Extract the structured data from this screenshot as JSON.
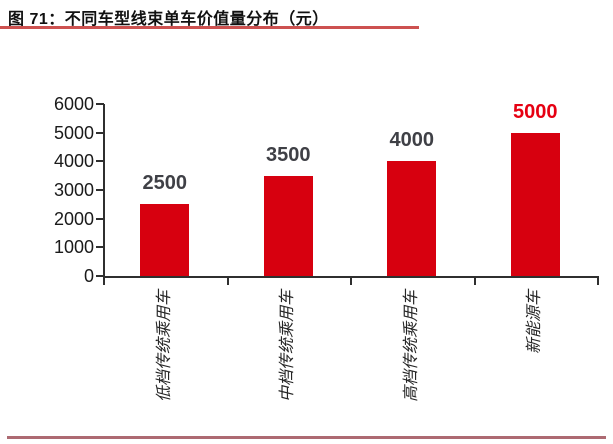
{
  "figure": {
    "title": "图 71：不同车型线束单车价值量分布（元）",
    "title_underline_color": "#cd5150",
    "footer_rule_color": "#ad6a72",
    "background_color": "#ffffff"
  },
  "chart_data": {
    "type": "bar",
    "title": "不同车型线束单车价值量分布（元）",
    "categories": [
      "低档传统乘用车",
      "中档传统乘用车",
      "高档传统乘用车",
      "新能源车"
    ],
    "values": [
      2500,
      3500,
      4000,
      5000
    ],
    "value_labels": [
      "2500",
      "3500",
      "4000",
      "5000"
    ],
    "value_label_colors": [
      "#3f4046",
      "#3f4046",
      "#3f4046",
      "#e60012"
    ],
    "xlabel": "",
    "ylabel": "",
    "ylim": [
      0,
      6000
    ],
    "yticks": [
      0,
      1000,
      2000,
      3000,
      4000,
      5000,
      6000
    ],
    "ytick_labels": [
      "0",
      "1000",
      "2000",
      "3000",
      "4000",
      "5000",
      "6000"
    ],
    "bar_color": "#d7000f",
    "axis_color": "#2f2f2f",
    "grid": false,
    "legend": "none",
    "x_labels_rotated_degrees": 90
  }
}
